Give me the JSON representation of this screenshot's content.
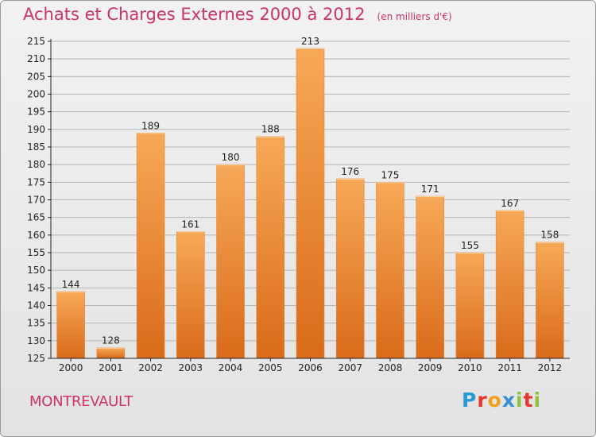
{
  "title": "Achats et Charges Externes 2000 à 2012",
  "subtitle": "(en milliers d'€)",
  "commune": "MONTREVAULT",
  "brand": {
    "text": "Proxiti",
    "letter_colors": [
      "#2a9ad6",
      "#e6352c",
      "#f0a020",
      "#3a8fd0",
      "#8cc43c",
      "#e6352c",
      "#8cc43c"
    ]
  },
  "colors": {
    "title": "#cc3366",
    "bar_light": "#f7a957",
    "bar_dark": "#d96b1a",
    "grid": "#b4b4b4",
    "axis": "#222222"
  },
  "chart_data": {
    "type": "bar",
    "categories": [
      "2000",
      "2001",
      "2002",
      "2003",
      "2004",
      "2005",
      "2006",
      "2007",
      "2008",
      "2009",
      "2010",
      "2011",
      "2012"
    ],
    "values": [
      144,
      128,
      189,
      161,
      180,
      188,
      213,
      176,
      175,
      171,
      155,
      167,
      158
    ],
    "title": "Achats et Charges Externes 2000 à 2012",
    "ylabel": "",
    "xlabel": "",
    "ylim": [
      125,
      215
    ],
    "y_ticks": [
      125,
      130,
      135,
      140,
      145,
      150,
      155,
      160,
      165,
      170,
      175,
      180,
      185,
      190,
      195,
      200,
      205,
      210,
      215
    ],
    "grid": true
  }
}
